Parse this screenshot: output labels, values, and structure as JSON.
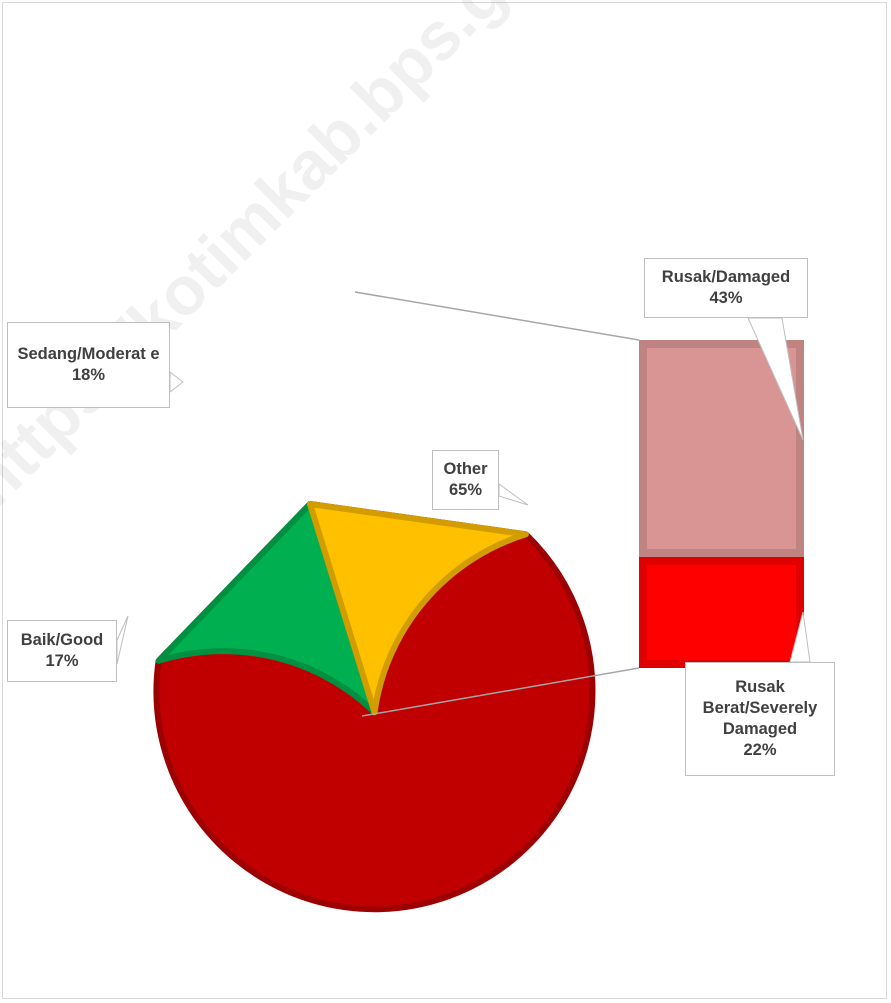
{
  "watermark": "https://kotimkab.bps.go.id",
  "colors": {
    "other": "#c00000",
    "moderate": "#ffc000",
    "good": "#00b050",
    "damaged": "#d99594",
    "severely": "#ff0000"
  },
  "chart_data": {
    "type": "pie",
    "subtype": "bar-of-pie",
    "slices": [
      {
        "name": "Other",
        "label": "Other",
        "value": 65,
        "percent": "65%",
        "color": "#c00000"
      },
      {
        "name": "Baik/Good",
        "label": "Baik/Good",
        "value": 17,
        "percent": "17%",
        "color": "#00b050"
      },
      {
        "name": "Sedang/Moderate",
        "label": "Sedang/Moderat e",
        "value": 18,
        "percent": "18%",
        "color": "#ffc000"
      }
    ],
    "breakdown": [
      {
        "name": "Rusak/Damaged",
        "label": "Rusak/Damaged",
        "value": 43,
        "percent": "43%",
        "color": "#d99594"
      },
      {
        "name": "Rusak Berat/Severely Damaged",
        "label": "Rusak Berat/Severely Damaged",
        "value": 22,
        "percent": "22%",
        "color": "#ff0000"
      }
    ],
    "legend": "none"
  }
}
